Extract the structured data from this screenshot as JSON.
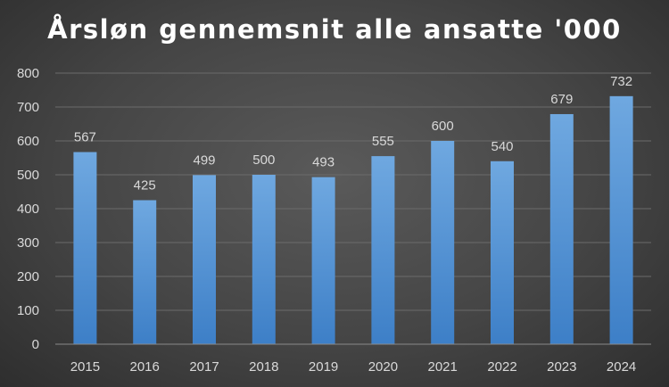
{
  "chart_data": {
    "type": "bar",
    "title": "Årsløn gennemsnit alle ansatte '000",
    "categories": [
      "2015",
      "2016",
      "2017",
      "2018",
      "2019",
      "2020",
      "2021",
      "2022",
      "2023",
      "2024"
    ],
    "values": [
      567,
      425,
      499,
      500,
      493,
      555,
      600,
      540,
      679,
      732
    ],
    "ylim": [
      0,
      800
    ],
    "yticks": [
      0,
      100,
      200,
      300,
      400,
      500,
      600,
      700,
      800
    ],
    "grid": true,
    "legend": "none",
    "bar_color_top": "#6fa8e0",
    "bar_color_bottom": "#3d7fc7",
    "text_color": "#d9d9d9",
    "grid_color": "#6b6b6b"
  }
}
